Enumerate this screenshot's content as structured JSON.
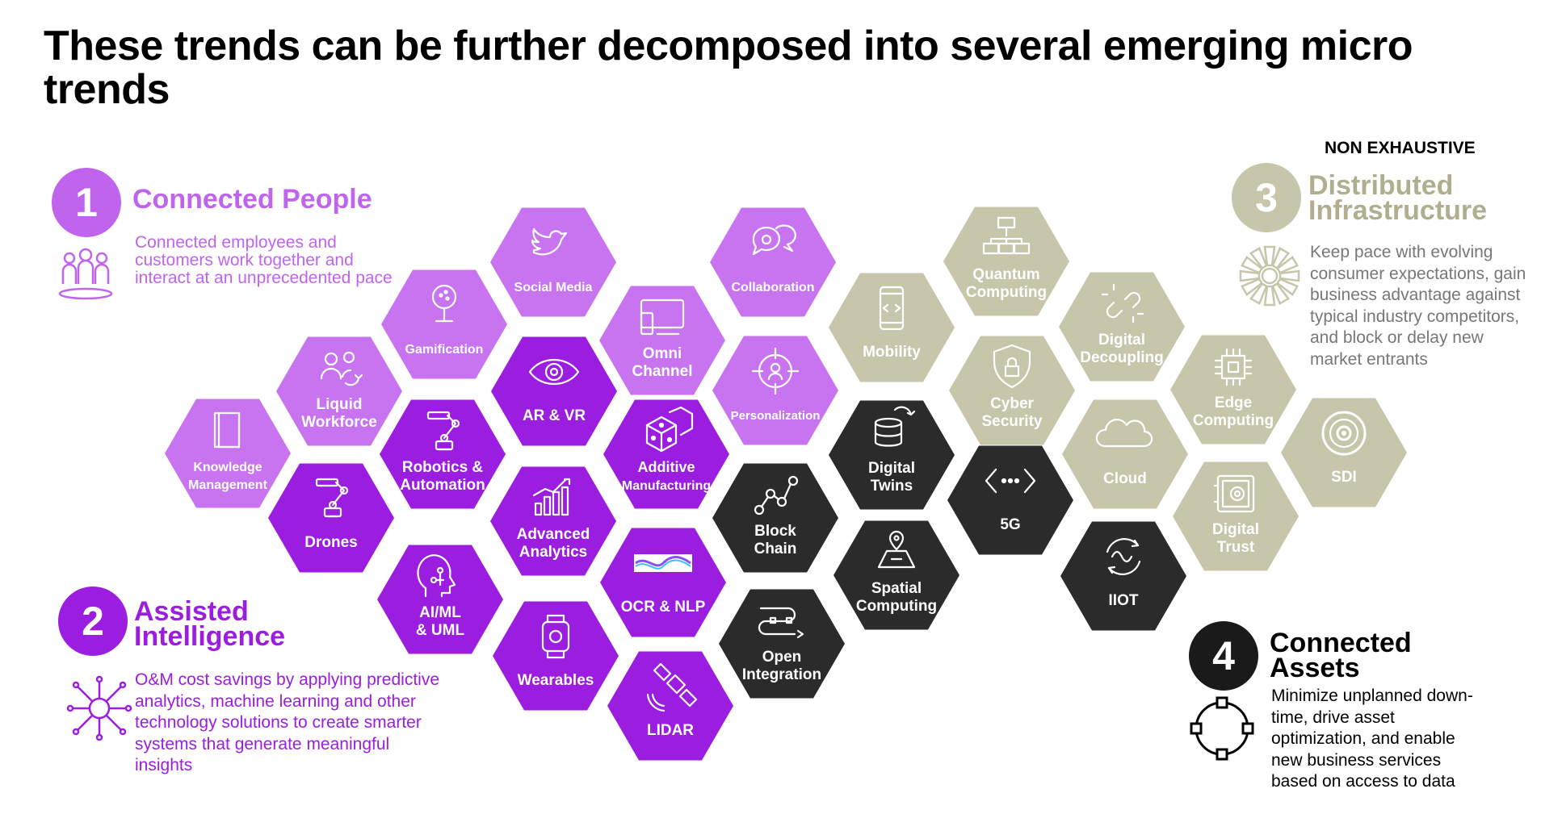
{
  "title": "These trends can be further decomposed into several emerging micro trends",
  "badge": "NON EXHAUSTIVE",
  "colors": {
    "light_purple": "#c874f0",
    "purple": "#9b1de0",
    "khaki": "#c7c5aa",
    "dark": "#2b2b2b",
    "circle_purple": "#c064ee"
  },
  "sections": [
    {
      "number": "1",
      "title_lines": [
        "Connected People"
      ],
      "description": "Connected employees and customers work together and interact at an unprecedented pace",
      "icon": "people-group-icon"
    },
    {
      "number": "2",
      "title_lines": [
        "Assisted",
        "Intelligence"
      ],
      "description": "O&M cost savings by applying predictive analytics, machine learning and other technology solutions to create smarter systems that generate meaningful insights",
      "icon": "network-hub-icon"
    },
    {
      "number": "3",
      "title_lines": [
        "Distributed",
        "Infrastructure"
      ],
      "description": "Keep pace with evolving consumer expectations, gain business advantage against typical industry competitors, and block or delay new market entrants",
      "icon": "sunburst-icon"
    },
    {
      "number": "4",
      "title_lines": [
        "Connected",
        "Assets"
      ],
      "description": "Minimize unplanned down-time, drive asset optimization, and enable new business services based on access to data",
      "icon": "ring-nodes-icon"
    }
  ],
  "hexagons": [
    {
      "lines": [
        "Knowledge",
        "Management"
      ],
      "group": "light_purple",
      "icon": "book-icon"
    },
    {
      "lines": [
        "Liquid",
        "Workforce"
      ],
      "group": "light_purple",
      "icon": "swap-people-icon"
    },
    {
      "lines": [
        "Gamification"
      ],
      "group": "light_purple",
      "icon": "joystick-icon"
    },
    {
      "lines": [
        "Social Media"
      ],
      "group": "light_purple",
      "icon": "bird-icon"
    },
    {
      "lines": [
        "Omni",
        "Channel"
      ],
      "group": "light_purple",
      "icon": "devices-icon"
    },
    {
      "lines": [
        "Collaboration"
      ],
      "group": "light_purple",
      "icon": "chat-bubbles-icon"
    },
    {
      "lines": [
        "Personalization"
      ],
      "group": "light_purple",
      "icon": "target-person-icon"
    },
    {
      "lines": [
        "Drones"
      ],
      "group": "purple",
      "icon": "drone-arm-icon"
    },
    {
      "lines": [
        "Robotics &",
        "Automation"
      ],
      "group": "purple",
      "icon": "robot-arm-icon"
    },
    {
      "lines": [
        "AI/ML",
        "& UML"
      ],
      "group": "purple",
      "icon": "ai-head-icon"
    },
    {
      "lines": [
        "AR & VR"
      ],
      "group": "purple",
      "icon": "eye-icon"
    },
    {
      "lines": [
        "Advanced",
        "Analytics"
      ],
      "group": "purple",
      "icon": "bar-chart-icon"
    },
    {
      "lines": [
        "Wearables"
      ],
      "group": "purple",
      "icon": "smartwatch-icon"
    },
    {
      "lines": [
        "Additive",
        "Manufacturing"
      ],
      "group": "purple",
      "icon": "dice-icon"
    },
    {
      "lines": [
        "OCR & NLP"
      ],
      "group": "purple",
      "icon": "wave-image-icon"
    },
    {
      "lines": [
        "LIDAR"
      ],
      "group": "purple",
      "icon": "satellite-icon"
    },
    {
      "lines": [
        "Block",
        "Chain"
      ],
      "group": "dark",
      "icon": "chain-nodes-icon"
    },
    {
      "lines": [
        "Open",
        "Integration"
      ],
      "group": "dark",
      "icon": "flow-icon"
    },
    {
      "lines": [
        "Digital",
        "Twins"
      ],
      "group": "dark",
      "icon": "database-icon"
    },
    {
      "lines": [
        "Spatial",
        "Computing"
      ],
      "group": "dark",
      "icon": "map-pin-icon"
    },
    {
      "lines": [
        "5G"
      ],
      "group": "dark",
      "icon": "code-dots-icon"
    },
    {
      "lines": [
        "IIOT"
      ],
      "group": "dark",
      "icon": "cycle-wave-icon"
    },
    {
      "lines": [
        "Mobility"
      ],
      "group": "khaki",
      "icon": "phone-code-icon"
    },
    {
      "lines": [
        "Quantum",
        "Computing"
      ],
      "group": "khaki",
      "icon": "server-tree-icon"
    },
    {
      "lines": [
        "Cyber",
        "Security"
      ],
      "group": "khaki",
      "icon": "shield-lock-icon"
    },
    {
      "lines": [
        "Digital",
        "Decoupling"
      ],
      "group": "khaki",
      "icon": "broken-link-icon"
    },
    {
      "lines": [
        "Cloud"
      ],
      "group": "khaki",
      "icon": "cloud-icon"
    },
    {
      "lines": [
        "Edge",
        "Computing"
      ],
      "group": "khaki",
      "icon": "chip-icon"
    },
    {
      "lines": [
        "Digital",
        "Trust"
      ],
      "group": "khaki",
      "icon": "safe-icon"
    },
    {
      "lines": [
        "SDI"
      ],
      "group": "khaki",
      "icon": "concentric-circles-icon"
    }
  ]
}
